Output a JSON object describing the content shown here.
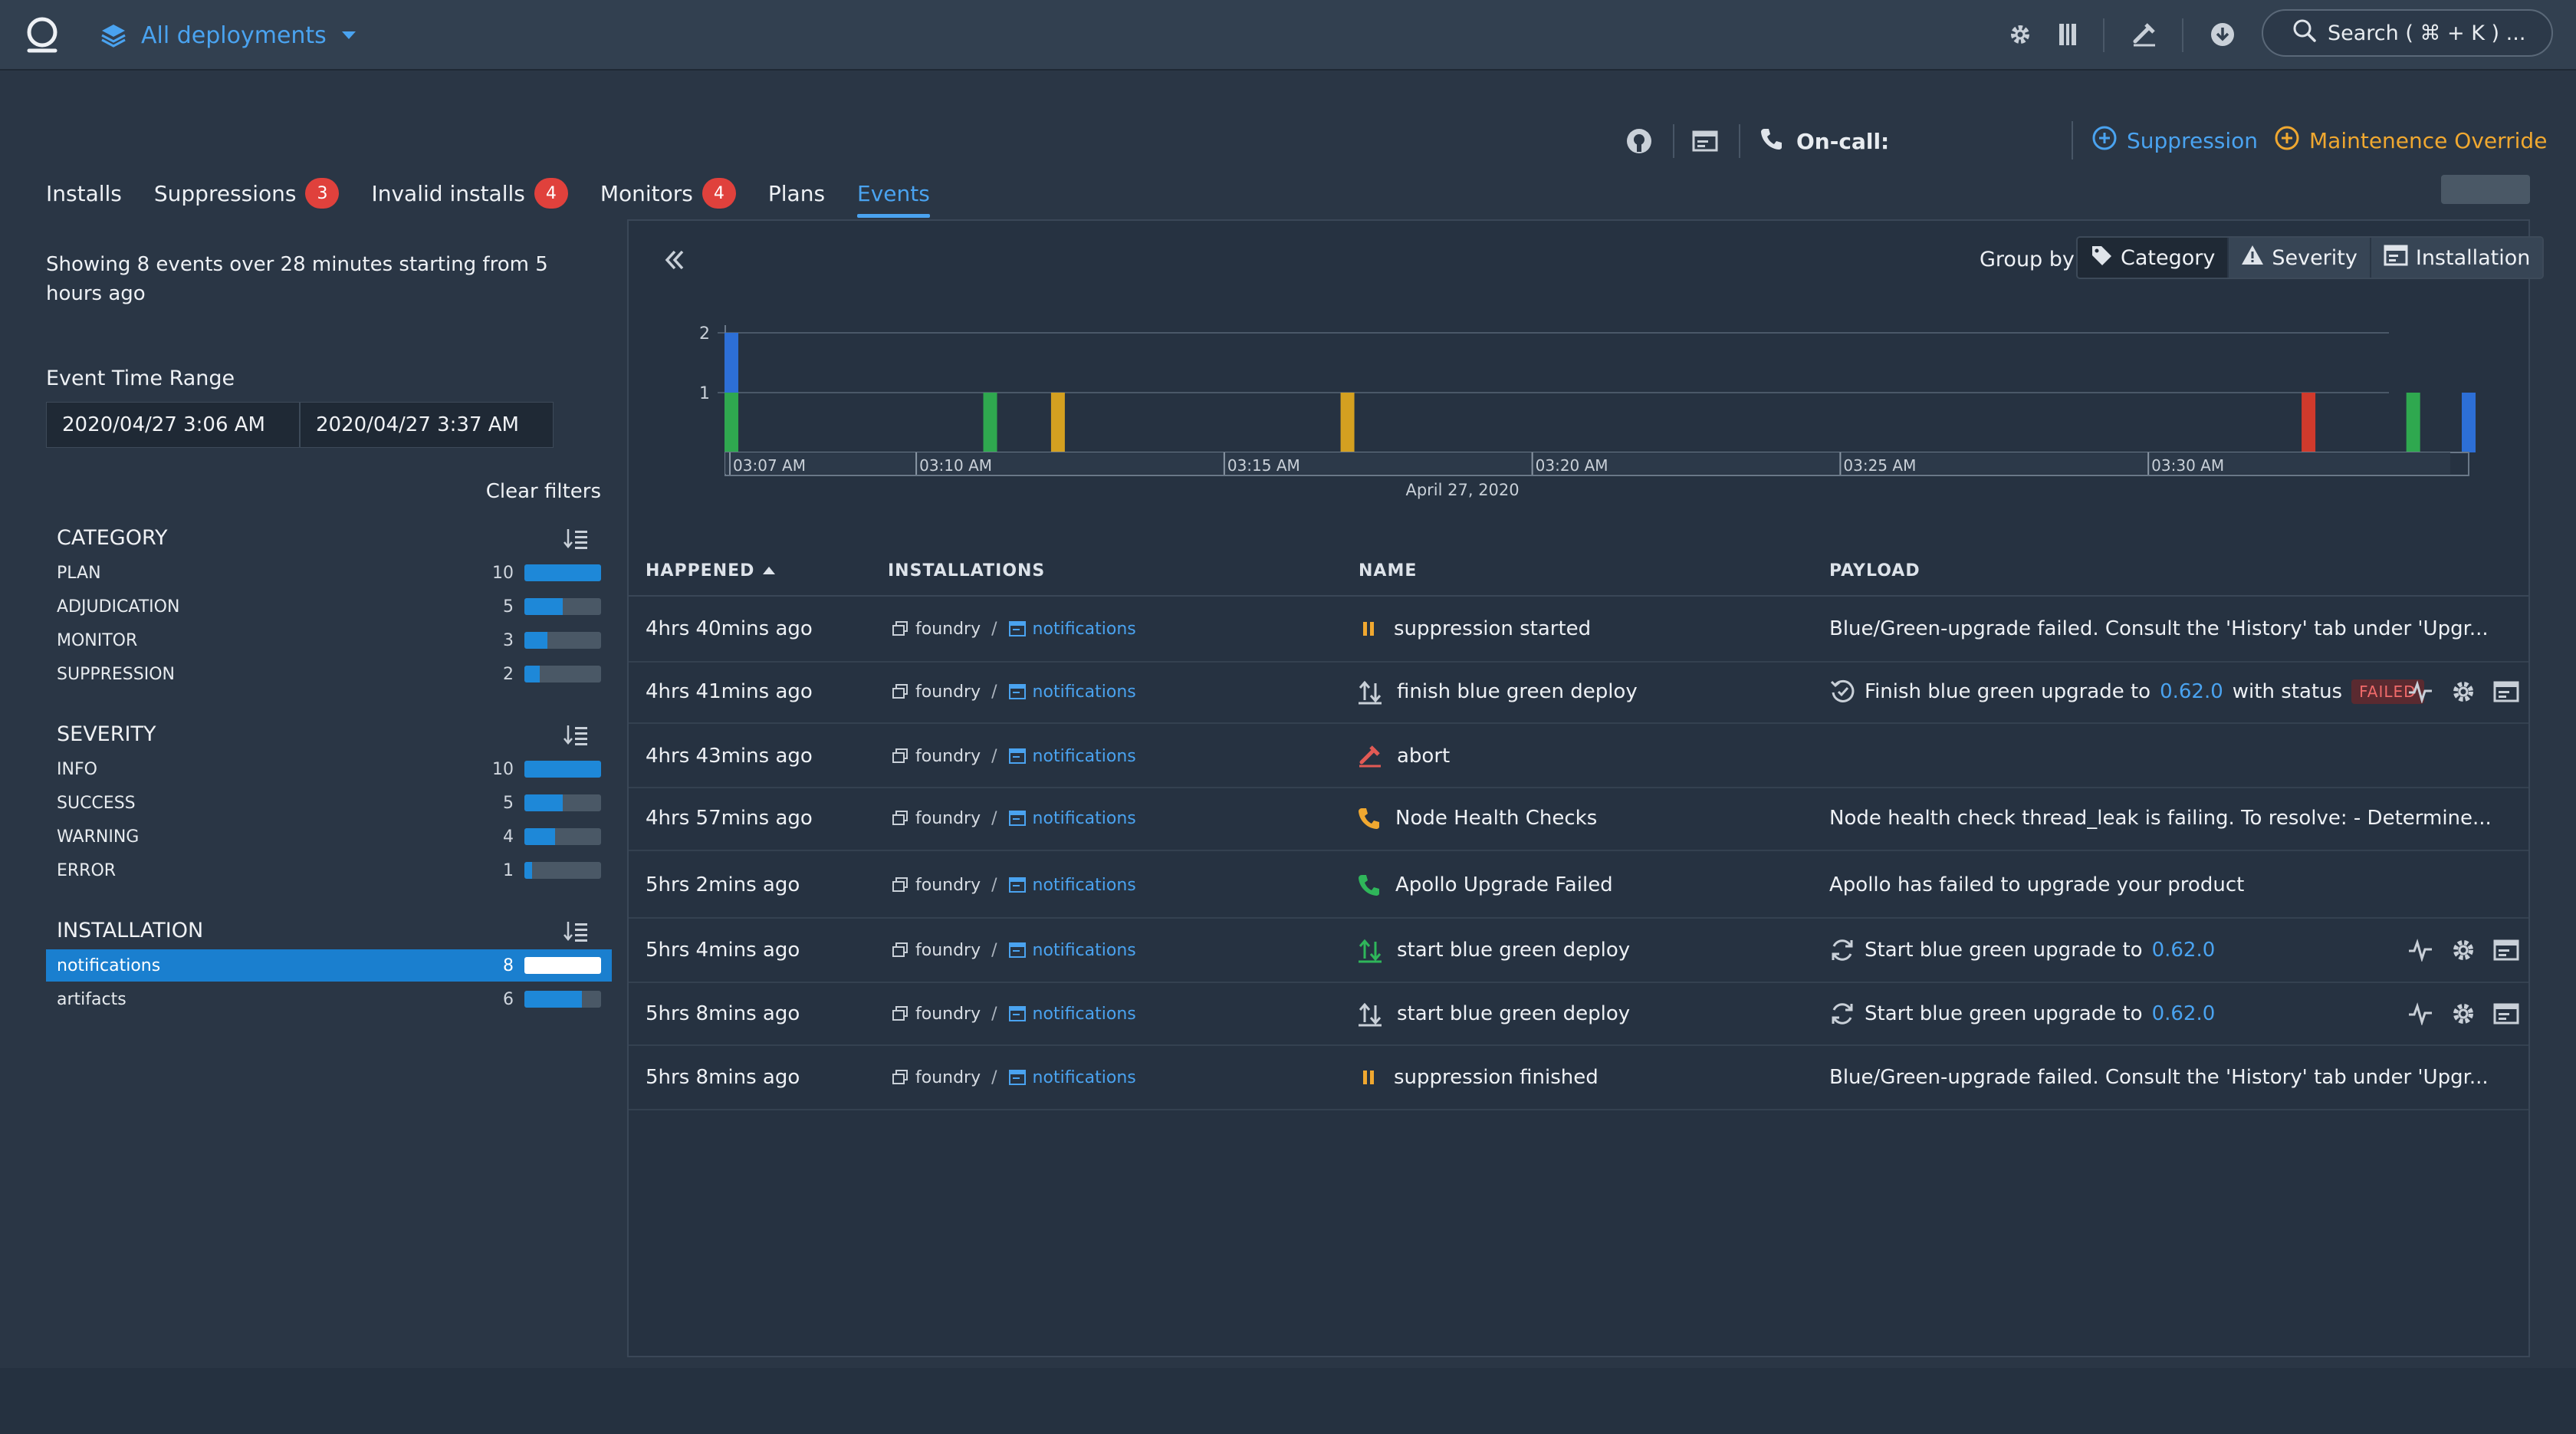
{
  "header": {
    "deployment_selector": "All deployments",
    "search_placeholder": "Search ( ⌘ + K ) ..."
  },
  "actions": {
    "oncall_label": "On-call:",
    "suppression_label": "Suppression",
    "maintenance_label": "Maintenence Override"
  },
  "tabs": [
    {
      "label": "Installs",
      "badge": ""
    },
    {
      "label": "Suppressions",
      "badge": "3"
    },
    {
      "label": "Invalid installs",
      "badge": "4"
    },
    {
      "label": "Monitors",
      "badge": "4"
    },
    {
      "label": "Plans",
      "badge": ""
    },
    {
      "label": "Events",
      "badge": "",
      "active": true
    }
  ],
  "sidebar": {
    "summary": "Showing 8 events over 28 minutes starting from 5 hours ago",
    "time_range_label": "Event Time Range",
    "time_start": "2020/04/27 3:06 AM",
    "time_end": "2020/04/27 3:37 AM",
    "clear_filters": "Clear filters",
    "facets": [
      {
        "title": "CATEGORY",
        "items": [
          {
            "label": "PLAN",
            "count": "10",
            "fill": 1.0
          },
          {
            "label": "ADJUDICATION",
            "count": "5",
            "fill": 0.5
          },
          {
            "label": "MONITOR",
            "count": "3",
            "fill": 0.3
          },
          {
            "label": "SUPPRESSION",
            "count": "2",
            "fill": 0.2
          }
        ]
      },
      {
        "title": "SEVERITY",
        "items": [
          {
            "label": "INFO",
            "count": "10",
            "fill": 1.0
          },
          {
            "label": "SUCCESS",
            "count": "5",
            "fill": 0.5
          },
          {
            "label": "WARNING",
            "count": "4",
            "fill": 0.4
          },
          {
            "label": "ERROR",
            "count": "1",
            "fill": 0.1
          }
        ]
      },
      {
        "title": "INSTALLATION",
        "items": [
          {
            "label": "notifications",
            "count": "8",
            "fill": 1.0,
            "selected": true
          },
          {
            "label": "artifacts",
            "count": "6",
            "fill": 0.75
          }
        ]
      }
    ]
  },
  "main": {
    "group_by_label": "Group by",
    "group_by_options": [
      {
        "label": "Category",
        "icon": "tag-icon",
        "active": true
      },
      {
        "label": "Severity",
        "icon": "warning-icon"
      },
      {
        "label": "Installation",
        "icon": "installation-icon"
      }
    ],
    "columns": {
      "happened": "HAPPENED",
      "installations": "INSTALLATIONS",
      "name": "NAME",
      "payload": "PAYLOAD"
    },
    "rows": [
      {
        "happened": "4hrs 40mins ago",
        "env": "foundry",
        "app": "notifications",
        "name": "suppression started",
        "icon": "pause-icon",
        "icon_color": "#f0a830",
        "payload": "Blue/Green-upgrade failed. Consult the 'History' tab under 'Upgr...",
        "actions": false
      },
      {
        "happened": "4hrs 41mins ago",
        "env": "foundry",
        "app": "notifications",
        "name": "finish blue green deploy",
        "icon": "deploy-arrows-icon",
        "icon_color": "#c9d0d8",
        "payload_pre": "Finish blue green upgrade to",
        "payload_version": "0.62.0",
        "payload_post": "with status",
        "payload_status": "FAILED",
        "payload_icon": "history-icon",
        "actions": true
      },
      {
        "happened": "4hrs 43mins ago",
        "env": "foundry",
        "app": "notifications",
        "name": "abort",
        "icon": "abort-icon",
        "icon_color": "#e25a55",
        "payload": "",
        "actions": false
      },
      {
        "happened": "4hrs 57mins ago",
        "env": "foundry",
        "app": "notifications",
        "name": "Node Health Checks",
        "icon": "phone-icon",
        "icon_color": "#f0a830",
        "payload": "Node health check thread_leak is failing. To resolve: - Determine...",
        "actions": false
      },
      {
        "happened": "5hrs 2mins ago",
        "env": "foundry",
        "app": "notifications",
        "name": "Apollo Upgrade Failed",
        "icon": "phone-icon",
        "icon_color": "#2fb65a",
        "payload": "Apollo has failed to upgrade your product",
        "actions": false
      },
      {
        "happened": "5hrs 4mins ago",
        "env": "foundry",
        "app": "notifications",
        "name": "start blue green deploy",
        "icon": "deploy-arrows-icon",
        "icon_color": "#2fb65a",
        "payload_pre": "Start blue green upgrade to",
        "payload_version": "0.62.0",
        "payload_icon": "refresh-icon",
        "actions": true
      },
      {
        "happened": "5hrs 8mins ago",
        "env": "foundry",
        "app": "notifications",
        "name": "start blue green deploy",
        "icon": "deploy-arrows-icon",
        "icon_color": "#c9d0d8",
        "payload_pre": "Start blue green upgrade to",
        "payload_version": "0.62.0",
        "payload_icon": "refresh-icon",
        "actions": true
      },
      {
        "happened": "5hrs 8mins ago",
        "env": "foundry",
        "app": "notifications",
        "name": "suppression finished",
        "icon": "pause-icon",
        "icon_color": "#f0a830",
        "payload": "Blue/Green-upgrade failed. Consult the 'History' tab under 'Upgr...",
        "actions": false
      }
    ]
  },
  "chart_data": {
    "type": "bar",
    "x_tick_labels": [
      "03:07 AM",
      "03:10 AM",
      "03:15 AM",
      "03:20 AM",
      "03:25 AM",
      "03:30 AM"
    ],
    "x_ticks_minutes": [
      7,
      10,
      15,
      20,
      25,
      30
    ],
    "x_range_minutes": [
      6.9,
      35.2
    ],
    "xlabel_date": "April 27, 2020",
    "y_ticks": [
      1,
      2
    ],
    "ylim": [
      0,
      2
    ],
    "bars": [
      {
        "minute": 7.0,
        "segments": [
          {
            "value": 1,
            "color": "#2fa84f"
          },
          {
            "value": 1,
            "color": "#2d6fd6"
          }
        ]
      },
      {
        "minute": 11.2,
        "segments": [
          {
            "value": 1,
            "color": "#2fa84f"
          }
        ]
      },
      {
        "minute": 12.3,
        "segments": [
          {
            "value": 1,
            "color": "#d4a020"
          }
        ]
      },
      {
        "minute": 17.0,
        "segments": [
          {
            "value": 1,
            "color": "#d4a020"
          }
        ]
      },
      {
        "minute": 32.6,
        "segments": [
          {
            "value": 1,
            "color": "#d03a2c"
          }
        ]
      },
      {
        "minute": 34.3,
        "segments": [
          {
            "value": 1,
            "color": "#2fa84f"
          }
        ]
      },
      {
        "minute": 35.2,
        "segments": [
          {
            "value": 1,
            "color": "#2d6fd6"
          }
        ]
      }
    ]
  }
}
